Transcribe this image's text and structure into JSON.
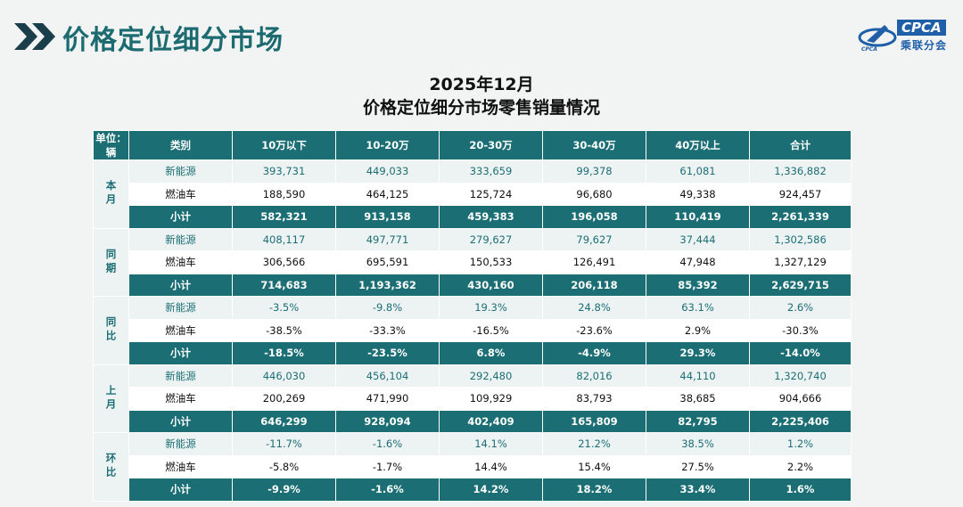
{
  "header": {
    "title": "价格定位细分市场",
    "logo_text": "CPCA",
    "logo_cn": "乘联分会",
    "logo_small": "CPCA"
  },
  "report": {
    "date": "2025年12月",
    "subtitle": "价格定位细分市场零售销量情况"
  },
  "table": {
    "unit": "单位：辆",
    "columns": [
      "类别",
      "10万以下",
      "10-20万",
      "20-30万",
      "30-40万",
      "40万以上",
      "合计"
    ],
    "groups": [
      {
        "name": "本月",
        "rows": [
          {
            "type": "nev",
            "label": "新能源",
            "values": [
              "393,731",
              "449,033",
              "333,659",
              "99,378",
              "61,081",
              "1,336,882"
            ]
          },
          {
            "type": "ice",
            "label": "燃油车",
            "values": [
              "188,590",
              "464,125",
              "125,724",
              "96,680",
              "49,338",
              "924,457"
            ]
          },
          {
            "type": "sub",
            "label": "小计",
            "values": [
              "582,321",
              "913,158",
              "459,383",
              "196,058",
              "110,419",
              "2,261,339"
            ]
          }
        ]
      },
      {
        "name": "同期",
        "rows": [
          {
            "type": "nev",
            "label": "新能源",
            "values": [
              "408,117",
              "497,771",
              "279,627",
              "79,627",
              "37,444",
              "1,302,586"
            ]
          },
          {
            "type": "ice",
            "label": "燃油车",
            "values": [
              "306,566",
              "695,591",
              "150,533",
              "126,491",
              "47,948",
              "1,327,129"
            ]
          },
          {
            "type": "sub",
            "label": "小计",
            "values": [
              "714,683",
              "1,193,362",
              "430,160",
              "206,118",
              "85,392",
              "2,629,715"
            ]
          }
        ]
      },
      {
        "name": "同比",
        "rows": [
          {
            "type": "nev",
            "label": "新能源",
            "values": [
              "-3.5%",
              "-9.8%",
              "19.3%",
              "24.8%",
              "63.1%",
              "2.6%"
            ]
          },
          {
            "type": "ice",
            "label": "燃油车",
            "values": [
              "-38.5%",
              "-33.3%",
              "-16.5%",
              "-23.6%",
              "2.9%",
              "-30.3%"
            ]
          },
          {
            "type": "sub",
            "label": "小计",
            "values": [
              "-18.5%",
              "-23.5%",
              "6.8%",
              "-4.9%",
              "29.3%",
              "-14.0%"
            ]
          }
        ]
      },
      {
        "name": "上月",
        "rows": [
          {
            "type": "nev",
            "label": "新能源",
            "values": [
              "446,030",
              "456,104",
              "292,480",
              "82,016",
              "44,110",
              "1,320,740"
            ]
          },
          {
            "type": "ice",
            "label": "燃油车",
            "values": [
              "200,269",
              "471,990",
              "109,929",
              "83,793",
              "38,685",
              "904,666"
            ]
          },
          {
            "type": "sub",
            "label": "小计",
            "values": [
              "646,299",
              "928,094",
              "402,409",
              "165,809",
              "82,795",
              "2,225,406"
            ]
          }
        ]
      },
      {
        "name": "环比",
        "rows": [
          {
            "type": "nev",
            "label": "新能源",
            "values": [
              "-11.7%",
              "-1.6%",
              "14.1%",
              "21.2%",
              "38.5%",
              "1.2%"
            ]
          },
          {
            "type": "ice",
            "label": "燃油车",
            "values": [
              "-5.8%",
              "-1.7%",
              "14.4%",
              "15.4%",
              "27.5%",
              "2.2%"
            ]
          },
          {
            "type": "sub",
            "label": "小计",
            "values": [
              "-9.9%",
              "-1.6%",
              "14.2%",
              "18.2%",
              "33.4%",
              "1.6%"
            ]
          }
        ]
      }
    ]
  },
  "colors": {
    "accent": "#1b6e74",
    "nev_row": "#edf3f3",
    "logo_blue": "#1f5fa8"
  }
}
